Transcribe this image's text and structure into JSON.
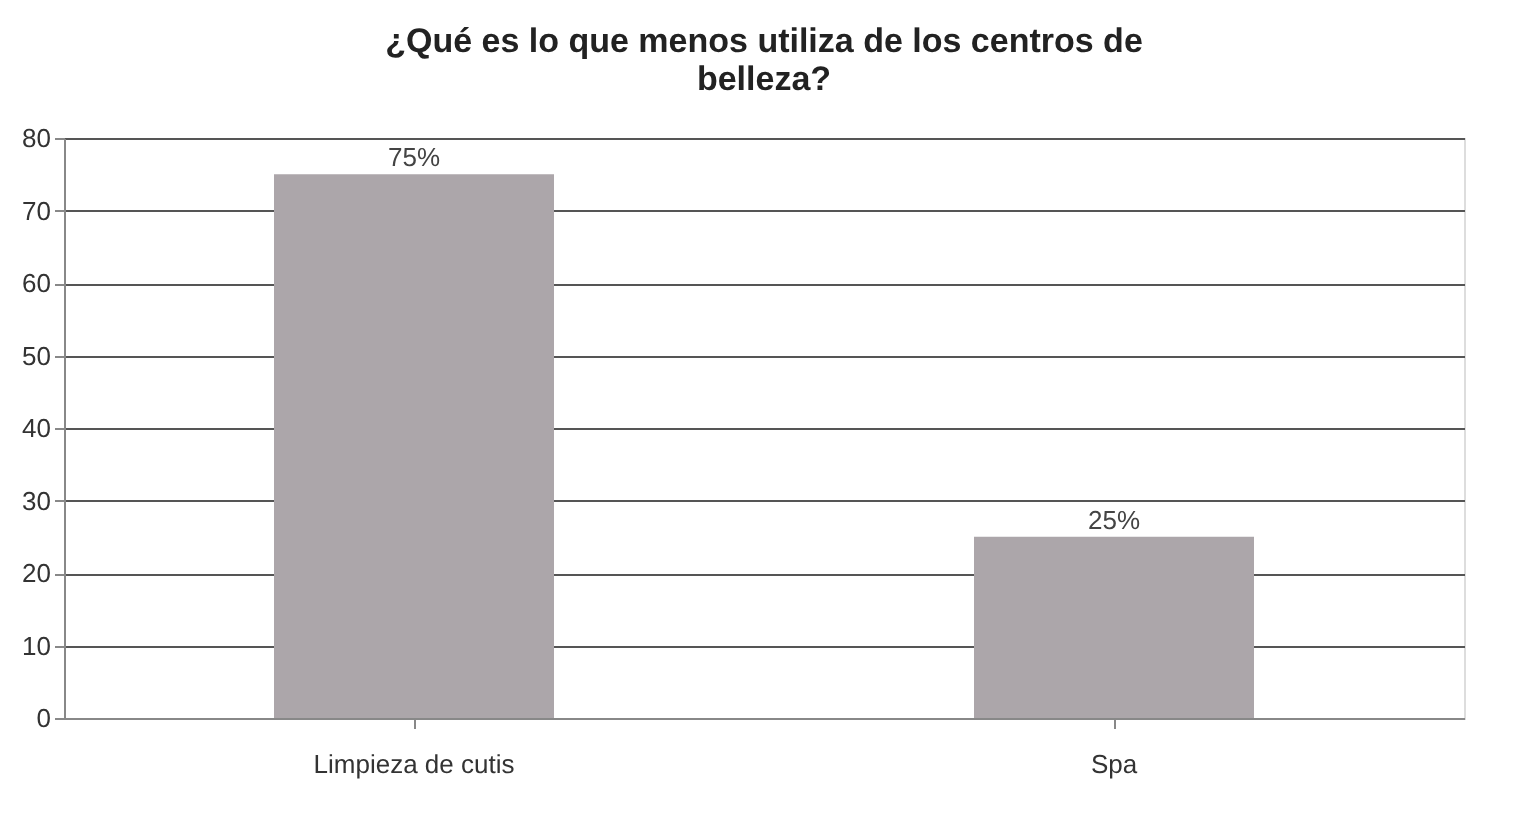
{
  "chart_data": {
    "type": "bar",
    "title": "¿Qué es lo que menos utiliza de los centros de belleza?",
    "categories": [
      "Limpieza de cutis",
      "Spa"
    ],
    "values": [
      75,
      25
    ],
    "value_labels": [
      "75%",
      "25%"
    ],
    "color": "#aca6aa",
    "ylim": [
      0,
      80
    ],
    "yticks": [
      0,
      10,
      20,
      30,
      40,
      50,
      60,
      70,
      80
    ],
    "grid": "y"
  }
}
